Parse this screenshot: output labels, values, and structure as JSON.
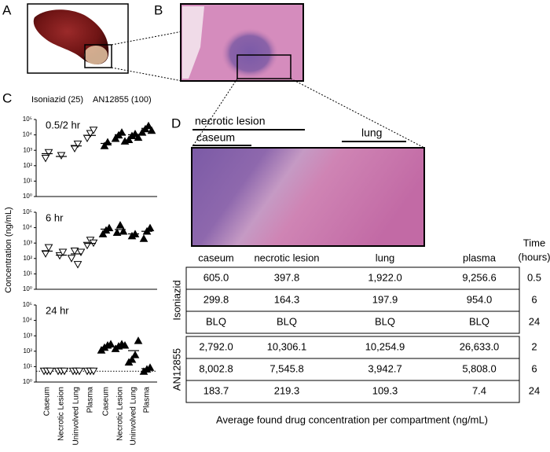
{
  "panels": {
    "a": "A",
    "b": "B",
    "c": "C",
    "d": "D"
  },
  "chart_data": [
    {
      "type": "scatter",
      "title": "0.5/2 hr",
      "log_y": true,
      "ylim": [
        1,
        100000
      ],
      "yticks": [
        {
          "value": 1,
          "label": "10⁰"
        },
        {
          "value": 10,
          "label": "10¹"
        },
        {
          "value": 100,
          "label": "10²"
        },
        {
          "value": 1000,
          "label": "10³"
        },
        {
          "value": 10000,
          "label": "10⁴"
        },
        {
          "value": 100000,
          "label": "10⁵"
        }
      ],
      "series": [
        {
          "name": "Isoniazid (25)",
          "color": "#000000",
          "marker": "triangle-down-open",
          "values": [
            [
              300,
              700
            ],
            [
              450
            ],
            [
              1300,
              2500
            ],
            [
              6000,
              12000,
              20000
            ],
            null,
            null,
            null,
            null
          ],
          "means": [
            605,
            397.8,
            1922,
            9256.6,
            null,
            null,
            null,
            null
          ]
        },
        {
          "name": "AN12855 (100)",
          "color": "#000000",
          "marker": "triangle-up-filled",
          "values": [
            null,
            null,
            null,
            null,
            [
              2000,
              3500
            ],
            [
              6000,
              10000,
              15000,
              4000
            ],
            [
              5000,
              9000,
              12000,
              7000
            ],
            [
              15000,
              25000,
              40000,
              20000
            ]
          ],
          "means": [
            null,
            null,
            null,
            null,
            2792,
            10306.1,
            10254.9,
            26633
          ]
        }
      ]
    },
    {
      "type": "scatter",
      "title": "6 hr",
      "log_y": true,
      "ylim": [
        1,
        100000
      ],
      "ylabel": "Concentration (ng/mL)",
      "yticks": [
        {
          "value": 1,
          "label": "10⁰"
        },
        {
          "value": 10,
          "label": "10¹"
        },
        {
          "value": 100,
          "label": "10²"
        },
        {
          "value": 1000,
          "label": "10³"
        },
        {
          "value": 10000,
          "label": "10⁴"
        },
        {
          "value": 100000,
          "label": "10⁵"
        }
      ],
      "series": [
        {
          "color": "#000000",
          "marker": "triangle-down-open",
          "values": [
            [
              200,
              500
            ],
            [
              150,
              250
            ],
            [
              100,
              300,
              40,
              250
            ],
            [
              700,
              1500,
              1000
            ],
            null,
            null,
            null,
            null
          ],
          "means": [
            299.8,
            164.3,
            197.9,
            954,
            null,
            null,
            null,
            null
          ]
        },
        {
          "color": "#000000",
          "marker": "triangle-up-filled",
          "values": [
            null,
            null,
            null,
            null,
            [
              4000,
              7000,
              10000
            ],
            [
              5000,
              15000,
              6000
            ],
            [
              3000,
              4000
            ],
            [
              2000,
              6000,
              10000
            ]
          ],
          "means": [
            null,
            null,
            null,
            null,
            8002.8,
            7545.8,
            3942.7,
            5808
          ]
        }
      ]
    },
    {
      "type": "scatter",
      "title": "24 hr",
      "log_y": true,
      "ylim": [
        1,
        100000
      ],
      "hline": 5,
      "yticks": [
        {
          "value": 1,
          "label": "10⁰"
        },
        {
          "value": 10,
          "label": "10¹"
        },
        {
          "value": 100,
          "label": "10²"
        },
        {
          "value": 1000,
          "label": "10³"
        },
        {
          "value": 10000,
          "label": "10⁴"
        },
        {
          "value": 100000,
          "label": "10⁵"
        }
      ],
      "categories": [
        "Caseum",
        "Necrotic Lesion",
        "Uninvolved Lung",
        "Plasma",
        "Caseum",
        "Necrotic Lesion",
        "Uninvolved Lung",
        "Plasma"
      ],
      "series": [
        {
          "color": "#000000",
          "marker": "triangle-down-open",
          "values": [
            [
              5,
              5,
              5
            ],
            [
              5,
              5,
              5
            ],
            [
              5,
              5,
              5
            ],
            [
              5,
              5,
              5
            ],
            null,
            null,
            null,
            null
          ],
          "means": [
            null,
            null,
            null,
            null,
            null,
            null,
            null,
            null
          ]
        },
        {
          "color": "#000000",
          "marker": "triangle-up-filled",
          "values": [
            null,
            null,
            null,
            null,
            [
              120,
              180,
              250,
              300
            ],
            [
              150,
              220,
              300,
              250
            ],
            [
              20,
              30,
              60,
              500
            ],
            [
              5,
              7,
              9
            ]
          ],
          "means": [
            null,
            null,
            null,
            null,
            183.7,
            219.3,
            109.3,
            7.4
          ]
        }
      ]
    }
  ],
  "histology": {
    "necrotic_lesion": "necrotic lesion",
    "caseum": "caseum",
    "lung": "lung"
  },
  "table": {
    "columns": [
      "caseum",
      "necrotic lesion",
      "lung",
      "plasma"
    ],
    "time_header": [
      "Time",
      "(hours)"
    ],
    "groups": [
      {
        "name": "Isoniazid",
        "rows": [
          {
            "cells": [
              "605.0",
              "397.8",
              "1,922.0",
              "9,256.6"
            ],
            "time": "0.5"
          },
          {
            "cells": [
              "299.8",
              "164.3",
              "197.9",
              "954.0"
            ],
            "time": "6"
          },
          {
            "cells": [
              "BLQ",
              "BLQ",
              "BLQ",
              "BLQ"
            ],
            "time": "24"
          }
        ]
      },
      {
        "name": "AN12855",
        "rows": [
          {
            "cells": [
              "2,792.0",
              "10,306.1",
              "10,254.9",
              "26,633.0"
            ],
            "time": "2"
          },
          {
            "cells": [
              "8,002.8",
              "7,545.8",
              "3,942.7",
              "5,808.0"
            ],
            "time": "6"
          },
          {
            "cells": [
              "183.7",
              "219.3",
              "109.3",
              "7.4"
            ],
            "time": "24"
          }
        ]
      }
    ],
    "caption": "Average found drug concentration per compartment (ng/mL)"
  }
}
